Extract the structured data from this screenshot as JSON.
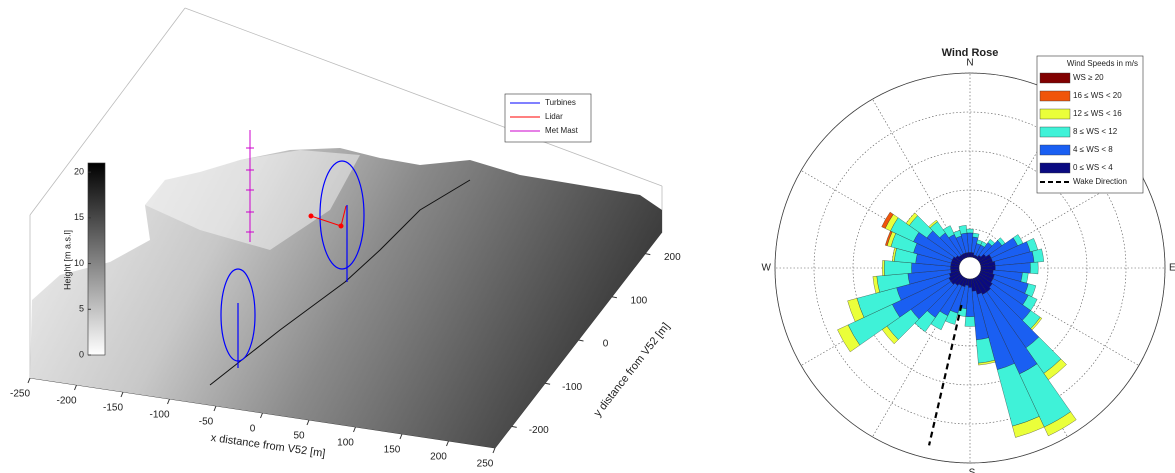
{
  "chart_data": [
    {
      "type": "surface3d",
      "xlabel": "x distance from V52 [m]",
      "ylabel": "y distance from V52 [m]",
      "xlim": [
        -250,
        250
      ],
      "xticks": [
        -250,
        -200,
        -150,
        -100,
        -50,
        0,
        50,
        100,
        150,
        200,
        250
      ],
      "ylim": [
        -250,
        250
      ],
      "yticks": [
        -200,
        -100,
        0,
        100,
        200
      ],
      "clabel": "Height [m a.s.l]",
      "clim": [
        0,
        21
      ],
      "cticks": [
        0,
        5,
        10,
        15,
        20
      ],
      "legend": "top right",
      "series": [
        {
          "name": "Turbines",
          "color": "#0000ff"
        },
        {
          "name": "Lidar",
          "color": "#ff0000"
        },
        {
          "name": "Met Mast",
          "color": "#cc00cc"
        }
      ]
    },
    {
      "type": "windrose",
      "title": "Wind Rose",
      "compass_labels": [
        "N",
        "E",
        "S",
        "W"
      ],
      "directions": [
        0,
        10,
        20,
        30,
        40,
        50,
        60,
        70,
        80,
        90,
        100,
        110,
        120,
        130,
        140,
        150,
        160,
        170,
        180,
        190,
        200,
        210,
        220,
        230,
        240,
        250,
        260,
        270,
        280,
        290,
        300,
        310,
        320,
        330,
        340,
        350
      ],
      "rlim": [
        0,
        10
      ],
      "rticks": [
        2,
        4,
        6,
        8,
        10
      ],
      "legend_title": "Wind Speeds in m/s",
      "legend": "top right",
      "series": [
        {
          "name": "0 ≤ WS < 4",
          "color": "#0a0a80",
          "values": [
            0.8,
            0.8,
            0.7,
            0.7,
            0.8,
            1.0,
            1.2,
            1.2,
            1.3,
            1.3,
            1.2,
            1.3,
            1.3,
            1.4,
            1.5,
            1.5,
            1.4,
            1.2,
            1.0,
            0.9,
            1.0,
            1.0,
            1.1,
            1.2,
            1.2,
            1.1,
            1.0,
            1.0,
            1.0,
            1.0,
            1.0,
            0.9,
            0.8,
            0.8,
            0.8,
            0.8
          ]
        },
        {
          "name": "4 ≤ WS < 8",
          "color": "#1a5ff2",
          "values": [
            1.0,
            0.8,
            0.6,
            0.6,
            0.8,
            1.0,
            1.5,
            2.0,
            2.0,
            1.8,
            1.5,
            1.8,
            2.0,
            2.4,
            3.5,
            4.5,
            4.0,
            2.5,
            1.5,
            1.2,
            1.4,
            1.7,
            2.0,
            2.5,
            3.2,
            2.8,
            2.2,
            2.0,
            1.8,
            2.0,
            2.2,
            1.8,
            1.4,
            1.1,
            0.9,
            1.0
          ]
        },
        {
          "name": "8 ≤ WS < 12",
          "color": "#3ff2d8",
          "values": [
            0.2,
            0.2,
            0.2,
            0.2,
            0.2,
            0.2,
            0.3,
            0.4,
            0.5,
            0.4,
            0.3,
            0.4,
            0.5,
            0.6,
            1.6,
            3.0,
            3.0,
            1.2,
            0.5,
            0.4,
            0.6,
            0.8,
            0.9,
            1.5,
            2.5,
            2.1,
            1.6,
            1.4,
            1.1,
            1.2,
            1.3,
            1.1,
            0.7,
            0.5,
            0.3,
            0.4
          ]
        },
        {
          "name": "12 ≤ WS < 16",
          "color": "#eaff3a",
          "values": [
            0,
            0,
            0,
            0,
            0,
            0,
            0,
            0,
            0,
            0,
            0,
            0,
            0,
            0.1,
            0.4,
            0.5,
            0.6,
            0.1,
            0,
            0,
            0,
            0,
            0,
            0.3,
            0.6,
            0.5,
            0.2,
            0.1,
            0.1,
            0.2,
            0.3,
            0.2,
            0.1,
            0,
            0,
            0
          ]
        },
        {
          "name": "16 ≤ WS < 20",
          "color": "#f0550a",
          "values": [
            0,
            0,
            0,
            0,
            0,
            0,
            0,
            0,
            0,
            0,
            0,
            0,
            0,
            0,
            0,
            0,
            0,
            0,
            0,
            0,
            0,
            0,
            0,
            0,
            0,
            0,
            0,
            0,
            0,
            0.1,
            0.2,
            0,
            0,
            0,
            0,
            0
          ]
        },
        {
          "name": "WS ≥ 20",
          "color": "#800000",
          "values": [
            0,
            0,
            0,
            0,
            0,
            0,
            0,
            0,
            0,
            0,
            0,
            0,
            0,
            0,
            0,
            0,
            0,
            0,
            0,
            0,
            0,
            0,
            0,
            0,
            0,
            0,
            0,
            0,
            0,
            0,
            0,
            0,
            0,
            0,
            0,
            0
          ]
        }
      ],
      "wake": {
        "name": "Wake Direction",
        "direction": 193
      }
    }
  ]
}
